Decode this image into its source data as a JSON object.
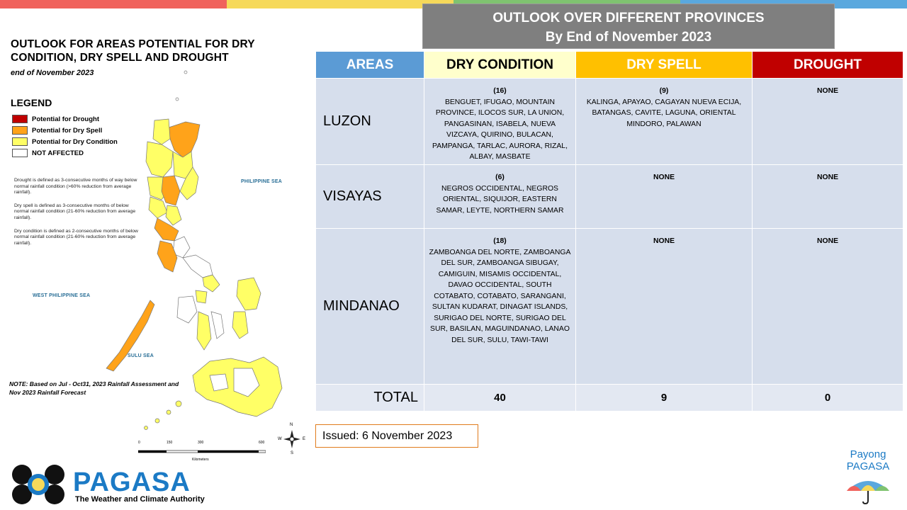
{
  "colors": {
    "top_bar": [
      "#f0625c",
      "#f6d95a",
      "#7fc370",
      "#5aa8de"
    ],
    "drought": "#c00000",
    "dry_spell": "#ffa31a",
    "dry_condition": "#ffff66",
    "not_affected": "#ffffff",
    "areas_header": "#5b9bd5",
    "dry_condition_header": "#ffffcc",
    "dry_spell_header": "#ffc000",
    "drought_header": "#c00000",
    "pagasa_blue": "#1b7ac5"
  },
  "map": {
    "title": "OUTLOOK FOR AREAS POTENTIAL FOR DRY CONDITION, DRY SPELL AND DROUGHT",
    "subtitle": "end of November 2023",
    "legend_title": "LEGEND",
    "legend": [
      {
        "label": "Potential for Drought",
        "color": "#c00000"
      },
      {
        "label": "Potential for Dry Spell",
        "color": "#ffa31a"
      },
      {
        "label": "Potential for Dry Condition",
        "color": "#ffff66"
      },
      {
        "label": "NOT AFFECTED",
        "color": "#ffffff"
      }
    ],
    "definitions": [
      "Drought is defined as 3-consecutive months of way below normal rainfall condition (>60% reduction from average rainfall).",
      "Dry spell is defined as 3-consecutive months of below normal rainfall condition (21-60% reduction from average rainfall).",
      "Dry condition is defined as 2-consecutive months of below normal rainfall condition (21-60% reduction from average rainfall)."
    ],
    "seas": {
      "philippine_sea": "PHILIPPINE SEA",
      "west_philippine_sea": "WEST PHILIPPINE SEA",
      "sulu_sea": "SULU SEA"
    },
    "note": "NOTE: Based on Jul - Oct31, 2023 Rainfall Assessment and Nov 2023 Rainfall Forecast",
    "scale": {
      "ticks": [
        "0",
        "150",
        "300",
        "600"
      ],
      "unit": "Kilometers"
    },
    "compass": {
      "n": "N",
      "s": "S",
      "e": "E",
      "w": "W"
    }
  },
  "outlook": {
    "title": "OUTLOOK OVER DIFFERENT PROVINCES",
    "subtitle": "By End of November 2023"
  },
  "table": {
    "headers": {
      "areas": "AREAS",
      "dry_condition": "DRY CONDITION",
      "dry_spell": "DRY SPELL",
      "drought": "DROUGHT"
    },
    "rows": [
      {
        "area": "LUZON",
        "dry_condition_count": "(16)",
        "dry_condition": "BENGUET, IFUGAO, MOUNTAIN PROVINCE, ILOCOS SUR, LA UNION, PANGASINAN, ISABELA, NUEVA VIZCAYA, QUIRINO, BULACAN, PAMPANGA, TARLAC, AURORA, RIZAL, ALBAY, MASBATE",
        "dry_spell_count": "(9)",
        "dry_spell": "KALINGA, APAYAO, CAGAYAN NUEVA ECIJA, BATANGAS, CAVITE, LAGUNA, ORIENTAL MINDORO, PALAWAN",
        "drought": "NONE"
      },
      {
        "area": "VISAYAS",
        "dry_condition_count": "(6)",
        "dry_condition": "NEGROS OCCIDENTAL, NEGROS ORIENTAL, SIQUIJOR, EASTERN SAMAR, LEYTE, NORTHERN SAMAR",
        "dry_spell": "NONE",
        "drought": "NONE"
      },
      {
        "area": "MINDANAO",
        "dry_condition_count": "(18)",
        "dry_condition": "ZAMBOANGA DEL NORTE, ZAMBOANGA DEL SUR, ZAMBOANGA SIBUGAY, CAMIGUIN, MISAMIS OCCIDENTAL, DAVAO OCCIDENTAL, SOUTH COTABATO, COTABATO, SARANGANI, SULTAN KUDARAT, DINAGAT ISLANDS, SURIGAO DEL NORTE, SURIGAO DEL SUR, BASILAN, MAGUINDANAO, LANAO DEL SUR, SULU, TAWI-TAWI",
        "dry_spell": "NONE",
        "drought": "NONE"
      }
    ],
    "total": {
      "label": "TOTAL",
      "dry_condition": "40",
      "dry_spell": "9",
      "drought": "0"
    }
  },
  "issued": "Issued: 6 November 2023",
  "branding": {
    "name": "PAGASA",
    "tagline": "The Weather and Climate Authority",
    "payong_line1": "Payong",
    "payong_line2": "PAGASA"
  }
}
